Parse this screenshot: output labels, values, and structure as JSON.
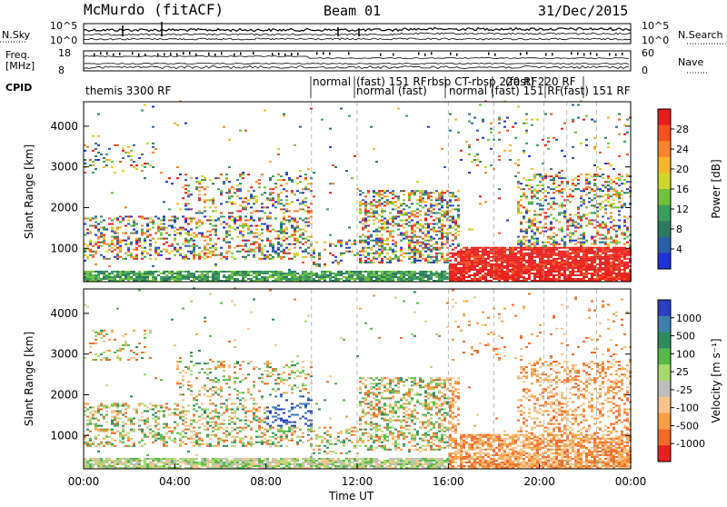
{
  "header": {
    "station": "McMurdo (fitACF)",
    "beam": "Beam 01",
    "date": "31/Dec/2015"
  },
  "noise_panel": {
    "left_label": "N.Sky",
    "right_label": "N.Search",
    "left_ticks": [
      "10^5",
      "10^0"
    ],
    "right_ticks": [
      "10^5",
      "10^0"
    ]
  },
  "freq_panel": {
    "left_label_top": "Freq.",
    "left_label_bottom": "[MHz]",
    "right_label": "Nave",
    "left_ticks": [
      "18",
      "8"
    ],
    "right_ticks": [
      "60",
      "0"
    ]
  },
  "cpid": {
    "label": "CPID",
    "segments": [
      {
        "text": "themis 3300 RF"
      },
      {
        "text": "normal"
      },
      {
        "text": "(fast)  151 RF"
      },
      {
        "text": "normal (fast)"
      },
      {
        "text": "rbsp CT-rbsp 220 RF"
      },
      {
        "text": "normal (fast) 151 RF"
      },
      {
        "text": "(fast) 220 RF"
      },
      {
        "text": "(fast) 151 RF"
      }
    ]
  },
  "time_axis": {
    "label": "Time UT",
    "ticks": [
      "00:00",
      "04:00",
      "08:00",
      "12:00",
      "16:00",
      "20:00",
      "00:00"
    ]
  },
  "chart_data": [
    {
      "type": "heatmap",
      "name": "power",
      "ylabel": "Slant Range [km]",
      "yticks": [
        1000,
        2000,
        3000,
        4000
      ],
      "ylim": [
        180,
        4600
      ],
      "xlim_hours": [
        0,
        24
      ],
      "colorbar": {
        "label": "Power [dB]",
        "ticks": [
          "28",
          "24",
          "20",
          "16",
          "12",
          "8",
          "4"
        ],
        "colors": [
          "#e81e1e",
          "#f5501e",
          "#f7832a",
          "#f5b62a",
          "#cfd62a",
          "#71c13c",
          "#3a9e5c",
          "#2d7a60",
          "#2a5fa8",
          "#1f32d6"
        ]
      }
    },
    {
      "type": "heatmap",
      "name": "velocity",
      "ylabel": "Slant Range [km]",
      "yticks": [
        1000,
        2000,
        3000,
        4000
      ],
      "ylim": [
        180,
        4600
      ],
      "xlim_hours": [
        0,
        24
      ],
      "colorbar": {
        "label": "Velocity [m s⁻¹]",
        "ticks": [
          "1000",
          "500",
          "100",
          "25",
          "-25",
          "-100",
          "-500",
          "-1000"
        ],
        "colors": [
          "#2b3fbf",
          "#3f7fae",
          "#2f8a5e",
          "#58b84a",
          "#a7d86c",
          "#bdbdbd",
          "#f5c48a",
          "#f5a043",
          "#f06a2a",
          "#e62020"
        ]
      }
    }
  ]
}
